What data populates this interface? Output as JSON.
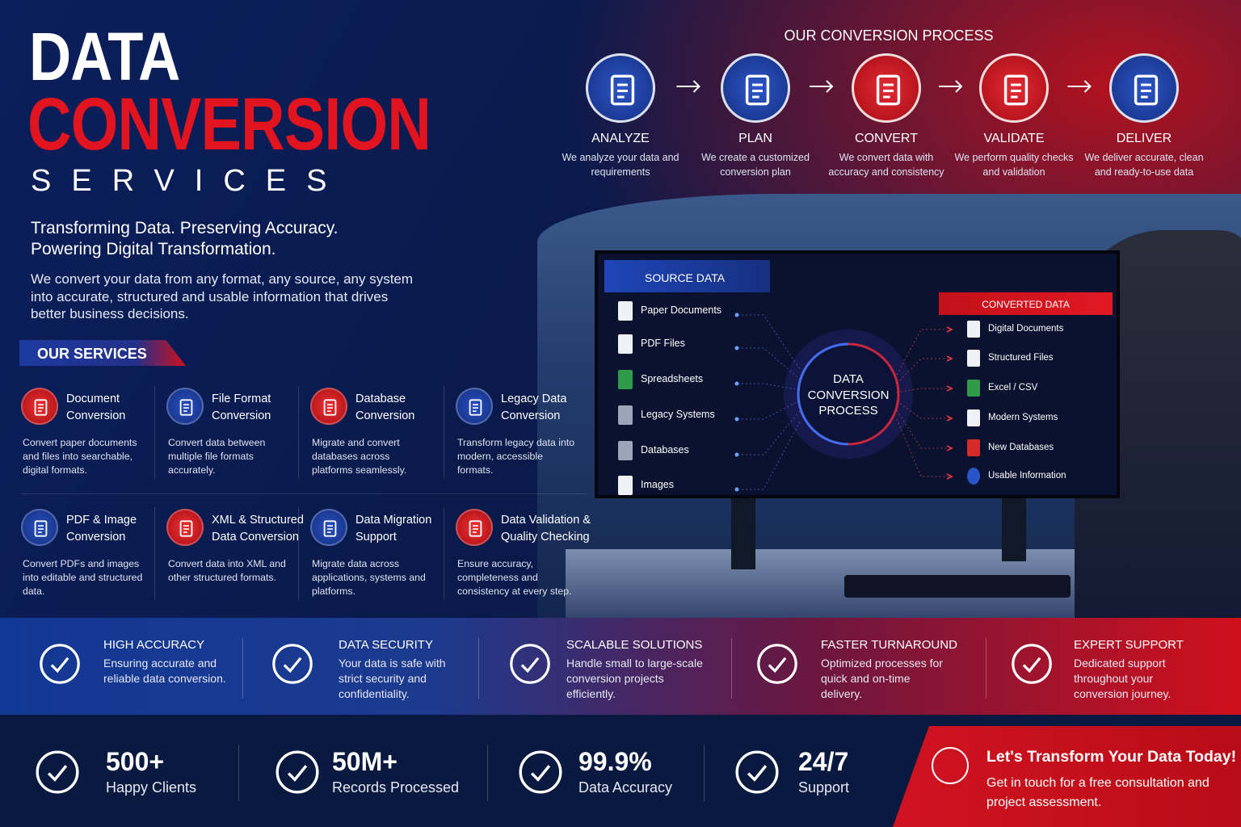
{
  "header": {
    "title_line1": "DATA",
    "title_line2": "CONVERSION",
    "title_line3": "SERVICES",
    "tagline_1": "Transforming Data. Preserving Accuracy.",
    "tagline_2": "Powering Digital Transformation.",
    "description": "We convert your data from any format, any source, any system into accurate, structured and usable information that drives better business decisions."
  },
  "services": {
    "heading": "OUR SERVICES",
    "items": [
      {
        "title": "Document Conversion",
        "description": "Convert paper documents and files into searchable, digital formats."
      },
      {
        "title": "File Format Conversion",
        "description": "Convert data between multiple file formats accurately."
      },
      {
        "title": "Database Conversion",
        "description": "Migrate and convert databases across platforms seamlessly."
      },
      {
        "title": "Legacy Data Conversion",
        "description": "Transform legacy data into modern, accessible formats."
      },
      {
        "title": "PDF & Image Conversion",
        "description": "Convert PDFs and images into editable and structured data."
      },
      {
        "title": "XML & Structured Data Conversion",
        "description": "Convert data into XML and other structured formats."
      },
      {
        "title": "Data Migration Support",
        "description": "Migrate data across applications, systems and platforms."
      },
      {
        "title": "Data Validation & Quality Checking",
        "description": "Ensure accuracy, completeness and consistency at every step."
      }
    ]
  },
  "process": {
    "heading": "OUR CONVERSION PROCESS",
    "steps": [
      {
        "title": "ANALYZE",
        "description": "We analyze your data and requirements"
      },
      {
        "title": "PLAN",
        "description": "We create a customized conversion plan"
      },
      {
        "title": "CONVERT",
        "description": "We convert data with accuracy and consistency"
      },
      {
        "title": "VALIDATE",
        "description": "We perform quality checks and validation"
      },
      {
        "title": "DELIVER",
        "description": "We deliver accurate, clean and ready-to-use data"
      }
    ]
  },
  "screen": {
    "source_heading": "SOURCE DATA",
    "sources": [
      "Paper Documents",
      "PDF Files",
      "Spreadsheets",
      "Legacy Systems",
      "Databases",
      "Images"
    ],
    "center_label": "DATA CONVERSION PROCESS",
    "converted_heading": "CONVERTED DATA",
    "outputs": [
      "Digital Documents",
      "Structured Files",
      "Excel / CSV",
      "Modern Systems",
      "New Databases",
      "Usable Information"
    ]
  },
  "features": [
    {
      "title": "HIGH ACCURACY",
      "description": "Ensuring accurate and reliable data conversion."
    },
    {
      "title": "DATA SECURITY",
      "description": "Your data is safe with strict security and confidentiality."
    },
    {
      "title": "SCALABLE SOLUTIONS",
      "description": "Handle small to large-scale conversion projects efficiently."
    },
    {
      "title": "FASTER TURNAROUND",
      "description": "Optimized processes for quick and on-time delivery."
    },
    {
      "title": "EXPERT SUPPORT",
      "description": "Dedicated support throughout your conversion journey."
    }
  ],
  "stats": [
    {
      "value": "500+",
      "label": "Happy Clients"
    },
    {
      "value": "50M+",
      "label": "Records Processed"
    },
    {
      "value": "99.9%",
      "label": "Data Accuracy"
    },
    {
      "value": "24/7",
      "label": "Support"
    }
  ],
  "cta": {
    "title": "Let's Transform Your Data Today!",
    "text": "Get in touch for a free consultation and project assessment."
  }
}
